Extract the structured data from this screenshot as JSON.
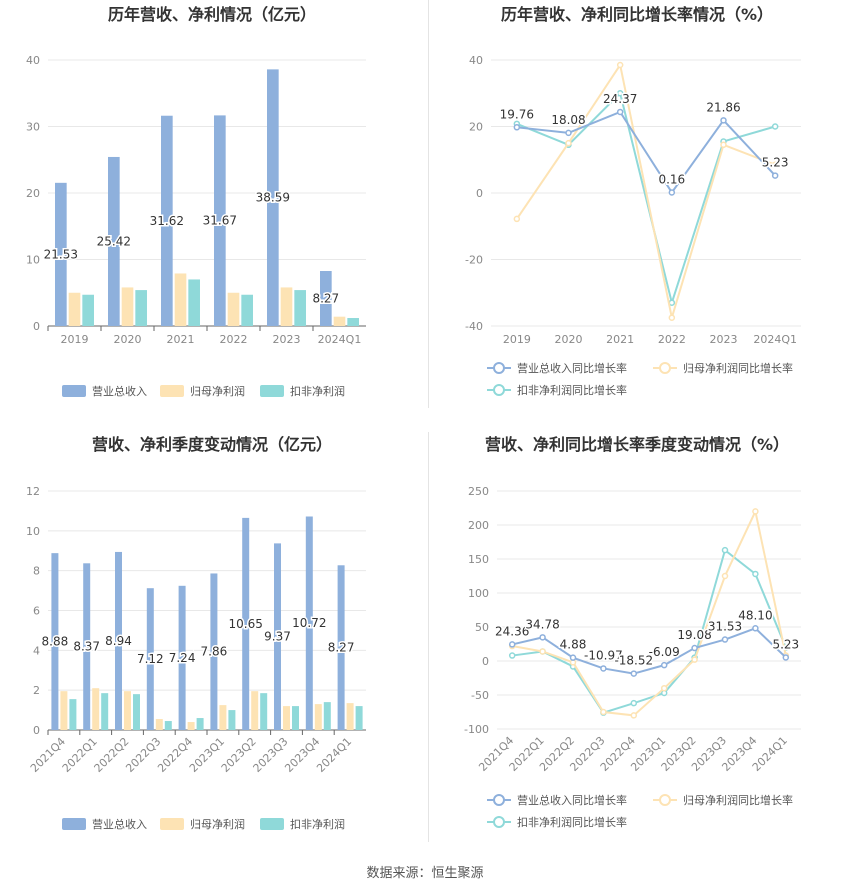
{
  "footer": "数据来源：恒生聚源",
  "colors": {
    "revenue": "#8eb0dc",
    "net_profit": "#fde3b4",
    "deducted_profit": "#8fd9d9",
    "grid": "#e8e8e8",
    "axis_text": "#888888"
  },
  "chart_data": [
    {
      "type": "bar",
      "title": "历年营收、净利情况（亿元）",
      "categories": [
        "2019",
        "2020",
        "2021",
        "2022",
        "2023",
        "2024Q1"
      ],
      "ylim": [
        0,
        40
      ],
      "yticks": [
        0,
        10,
        20,
        30,
        40
      ],
      "series": [
        {
          "name": "营业总收入",
          "values": [
            21.53,
            25.42,
            31.62,
            31.67,
            38.59,
            8.27
          ],
          "labels": [
            "21.53",
            "25.42",
            "31.62",
            "31.67",
            "38.59",
            "8.27"
          ]
        },
        {
          "name": "归母净利润",
          "values": [
            5.0,
            5.8,
            7.9,
            5.0,
            5.8,
            1.4
          ]
        },
        {
          "name": "扣非净利润",
          "values": [
            4.7,
            5.4,
            7.0,
            4.7,
            5.4,
            1.2
          ]
        }
      ],
      "legend": "bottom",
      "grid": true
    },
    {
      "type": "line",
      "title": "历年营收、净利同比增长率情况（%）",
      "categories": [
        "2019",
        "2020",
        "2021",
        "2022",
        "2023",
        "2024Q1"
      ],
      "ylim": [
        -40,
        40
      ],
      "yticks": [
        -40,
        -20,
        0,
        20,
        40
      ],
      "series": [
        {
          "name": "营业总收入同比增长率",
          "values": [
            19.76,
            18.08,
            24.37,
            0.16,
            21.86,
            5.23
          ],
          "labels": [
            "19.76",
            "18.08",
            "24.37",
            "0.16",
            "21.86",
            "5.23"
          ]
        },
        {
          "name": "归母净利润同比增长率",
          "values": [
            -7.8,
            15.0,
            38.5,
            -37.5,
            14.5,
            8.5
          ]
        },
        {
          "name": "扣非净利润同比增长率",
          "values": [
            20.8,
            14.5,
            30.0,
            -33.0,
            15.5,
            20.0
          ]
        }
      ],
      "legend": "bottom",
      "grid": true
    },
    {
      "type": "bar",
      "title": "营收、净利季度变动情况（亿元）",
      "categories": [
        "2021Q4",
        "2022Q1",
        "2022Q2",
        "2022Q3",
        "2022Q4",
        "2023Q1",
        "2023Q2",
        "2023Q3",
        "2023Q4",
        "2024Q1"
      ],
      "ylim": [
        0,
        12
      ],
      "yticks": [
        0,
        2,
        4,
        6,
        8,
        10,
        12
      ],
      "series": [
        {
          "name": "营业总收入",
          "values": [
            8.88,
            8.37,
            8.94,
            7.12,
            7.24,
            7.86,
            10.65,
            9.37,
            10.72,
            8.27
          ],
          "labels": [
            "8.88",
            "8.37",
            "8.94",
            "7.12",
            "7.24",
            "7.86",
            "10.65",
            "9.37",
            "10.72",
            "8.27"
          ]
        },
        {
          "name": "归母净利润",
          "values": [
            1.95,
            2.1,
            1.95,
            0.55,
            0.4,
            1.25,
            1.95,
            1.2,
            1.3,
            1.35
          ]
        },
        {
          "name": "扣非净利润",
          "values": [
            1.55,
            1.85,
            1.8,
            0.45,
            0.6,
            1.0,
            1.85,
            1.2,
            1.4,
            1.2
          ]
        }
      ],
      "legend": "bottom",
      "grid": true
    },
    {
      "type": "line",
      "title": "营收、净利同比增长率季度变动情况（%）",
      "categories": [
        "2021Q4",
        "2022Q1",
        "2022Q2",
        "2022Q3",
        "2022Q4",
        "2023Q1",
        "2023Q2",
        "2023Q3",
        "2023Q4",
        "2024Q1"
      ],
      "ylim": [
        -100,
        250
      ],
      "yticks": [
        -100,
        -50,
        0,
        50,
        100,
        150,
        200,
        250
      ],
      "series": [
        {
          "name": "营业总收入同比增长率",
          "values": [
            24.36,
            34.78,
            4.88,
            -10.97,
            -18.52,
            -6.09,
            19.08,
            31.53,
            48.1,
            5.23
          ],
          "labels": [
            "24.36",
            "34.78",
            "4.88",
            "-10.97",
            "-18.52",
            "-6.09",
            "19.08",
            "31.53",
            "48.10",
            "5.23"
          ]
        },
        {
          "name": "归母净利润同比增长率",
          "values": [
            22.0,
            14.0,
            -2.0,
            -75.0,
            -80.0,
            -40.0,
            2.0,
            125.0,
            220.0,
            8.0
          ]
        },
        {
          "name": "扣非净利润同比增长率",
          "values": [
            8.0,
            14.0,
            -8.0,
            -76.0,
            -62.0,
            -47.0,
            5.0,
            163.0,
            128.0,
            20.0
          ]
        }
      ],
      "legend": "bottom",
      "grid": true
    }
  ]
}
